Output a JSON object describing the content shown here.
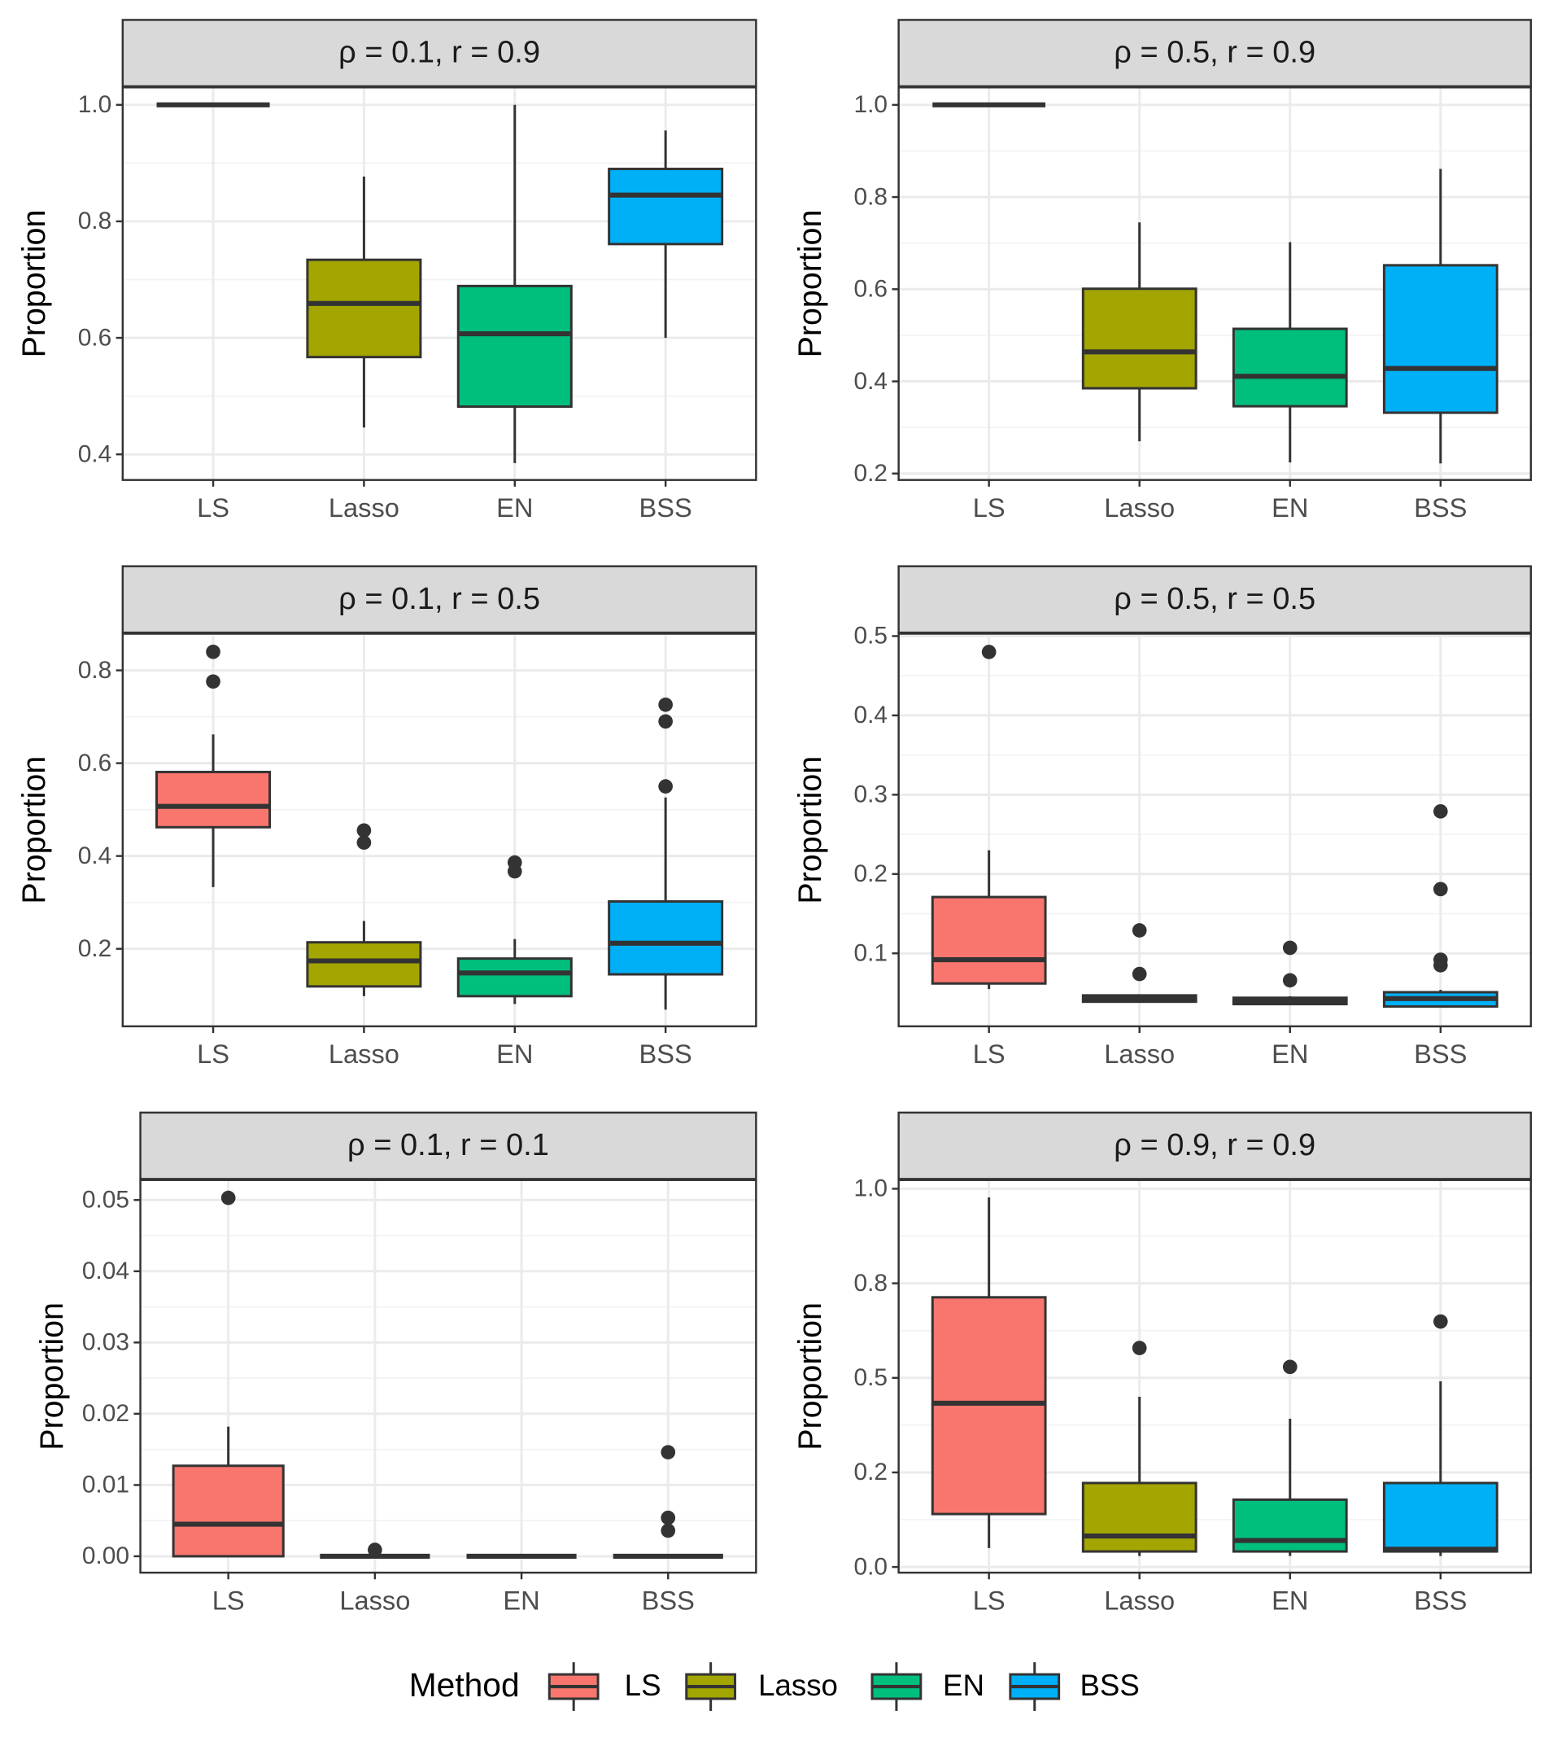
{
  "chart_data": [
    {
      "type": "box",
      "title": "ρ = 0.1,  r = 0.9",
      "y_label": "Proportion",
      "categories": [
        "LS",
        "Lasso",
        "EN",
        "BSS"
      ],
      "ylim": [
        0.356,
        1.03
      ],
      "yticks": [
        0.4,
        0.6,
        0.8,
        {
          "value": 1,
          "label": "1.0"
        }
      ],
      "stats": [
        {
          "min": 1,
          "q1": 1,
          "median": 1,
          "q3": 1,
          "max": 1
        },
        {
          "min": 0.446,
          "q1": 0.567,
          "median": 0.659,
          "q3": 0.734,
          "max": 0.877
        },
        {
          "min": 0.385,
          "q1": 0.482,
          "median": 0.607,
          "q3": 0.689,
          "max": 1
        },
        {
          "min": 0.6,
          "q1": 0.761,
          "median": 0.845,
          "q3": 0.89,
          "max": 0.956
        }
      ]
    },
    {
      "type": "box",
      "title": "ρ = 0.5,  r = 0.9",
      "y_label": "Proportion",
      "categories": [
        "LS",
        "Lasso",
        "EN",
        "BSS"
      ],
      "ylim": [
        0.186,
        1.038
      ],
      "yticks": [
        0.2,
        0.4,
        0.6,
        0.8,
        {
          "value": 1,
          "label": "1.0"
        }
      ],
      "stats": [
        {
          "min": 1,
          "q1": 1,
          "median": 1,
          "q3": 1,
          "max": 1
        },
        {
          "min": 0.27,
          "q1": 0.385,
          "median": 0.464,
          "q3": 0.601,
          "max": 0.745
        },
        {
          "min": 0.224,
          "q1": 0.346,
          "median": 0.411,
          "q3": 0.514,
          "max": 0.702
        },
        {
          "min": 0.222,
          "q1": 0.332,
          "median": 0.428,
          "q3": 0.652,
          "max": 0.861
        }
      ]
    },
    {
      "type": "box",
      "title": "ρ = 0.1,  r = 0.5",
      "y_label": "Proportion",
      "categories": [
        "LS",
        "Lasso",
        "EN",
        "BSS"
      ],
      "ylim": [
        0.033,
        0.879
      ],
      "yticks": [
        0.2,
        0.4,
        0.6,
        0.8
      ],
      "stats": [
        {
          "min": 0.333,
          "q1": 0.462,
          "median": 0.507,
          "q3": 0.581,
          "max": 0.662,
          "outliers": [
            0.84,
            0.776
          ]
        },
        {
          "min": 0.098,
          "q1": 0.119,
          "median": 0.174,
          "q3": 0.214,
          "max": 0.26,
          "outliers": [
            0.455,
            0.429
          ]
        },
        {
          "min": 0.081,
          "q1": 0.098,
          "median": 0.148,
          "q3": 0.179,
          "max": 0.221,
          "outliers": [
            0.386,
            0.367
          ]
        },
        {
          "min": 0.069,
          "q1": 0.145,
          "median": 0.212,
          "q3": 0.302,
          "max": 0.526,
          "outliers": [
            0.726,
            0.69,
            0.55
          ]
        }
      ]
    },
    {
      "type": "box",
      "title": "ρ = 0.5,  r = 0.5",
      "y_label": "Proportion",
      "categories": [
        "LS",
        "Lasso",
        "EN",
        "BSS"
      ],
      "ylim": [
        0.008,
        0.503
      ],
      "yticks": [
        0.1,
        0.2,
        0.3,
        0.4,
        0.5
      ],
      "stats": [
        {
          "min": 0.055,
          "q1": 0.062,
          "median": 0.092,
          "q3": 0.171,
          "max": 0.23,
          "outliers": [
            0.48
          ]
        },
        {
          "min": 0.038,
          "q1": 0.039,
          "median": 0.043,
          "q3": 0.047,
          "max": 0.047,
          "outliers": [
            0.129,
            0.074
          ]
        },
        {
          "min": 0.035,
          "q1": 0.036,
          "median": 0.04,
          "q3": 0.044,
          "max": 0.046,
          "outliers": [
            0.107,
            0.066
          ]
        },
        {
          "min": 0.032,
          "q1": 0.033,
          "median": 0.043,
          "q3": 0.051,
          "max": 0.054,
          "outliers": [
            0.279,
            0.181,
            0.092,
            0.085
          ]
        }
      ]
    },
    {
      "type": "box",
      "title": "ρ = 0.1,  r = 0.1",
      "y_label": "Proportion",
      "categories": [
        "LS",
        "Lasso",
        "EN",
        "BSS"
      ],
      "ylim": [
        -0.0023,
        0.0528
      ],
      "yticks": [
        {
          "value": 0,
          "label": "0.00"
        },
        {
          "value": 0.01,
          "label": "0.01"
        },
        {
          "value": 0.02,
          "label": "0.02"
        },
        {
          "value": 0.03,
          "label": "0.03"
        },
        {
          "value": 0.04,
          "label": "0.04"
        },
        {
          "value": 0.05,
          "label": "0.05"
        }
      ],
      "stats": [
        {
          "min": 0,
          "q1": 0,
          "median": 0.0045,
          "q3": 0.0127,
          "max": 0.0182,
          "outliers": [
            0.0503
          ]
        },
        {
          "min": 0,
          "q1": 0,
          "median": 0,
          "q3": 0,
          "max": 0,
          "outliers": [
            0.0009
          ]
        },
        {
          "min": 0,
          "q1": 0,
          "median": 0,
          "q3": 0,
          "max": 0
        },
        {
          "min": 0,
          "q1": 0,
          "median": 0,
          "q3": 0,
          "max": 0,
          "outliers": [
            0.0146,
            0.0054,
            0.0036
          ]
        }
      ]
    },
    {
      "type": "box",
      "title": "ρ = 0.9,  r = 0.9",
      "y_label": "Proportion",
      "categories": [
        "LS",
        "Lasso",
        "EN",
        "BSS"
      ],
      "ylim": [
        -0.015,
        1.023
      ],
      "yticks": [
        {
          "value": 0,
          "label": "0.0"
        },
        {
          "value": 0.25,
          "label": "0.2"
        },
        {
          "value": 0.5,
          "label": "0.5"
        },
        {
          "value": 0.75,
          "label": "0.8"
        },
        {
          "value": 1,
          "label": "1.0"
        }
      ],
      "stats": [
        {
          "min": 0.05,
          "q1": 0.14,
          "median": 0.433,
          "q3": 0.713,
          "max": 0.977
        },
        {
          "min": 0.029,
          "q1": 0.041,
          "median": 0.082,
          "q3": 0.222,
          "max": 0.45,
          "outliers": [
            0.579
          ]
        },
        {
          "min": 0.029,
          "q1": 0.041,
          "median": 0.07,
          "q3": 0.178,
          "max": 0.392,
          "outliers": [
            0.529
          ]
        },
        {
          "min": 0.029,
          "q1": 0.041,
          "median": 0.047,
          "q3": 0.222,
          "max": 0.491,
          "outliers": [
            0.649
          ]
        }
      ]
    }
  ],
  "legend": {
    "title": "Method",
    "names": [
      "LS",
      "Lasso",
      "EN",
      "BSS"
    ],
    "colors": [
      "#F8766D",
      "#A3A500",
      "#00BF7D",
      "#00B0F6"
    ]
  }
}
